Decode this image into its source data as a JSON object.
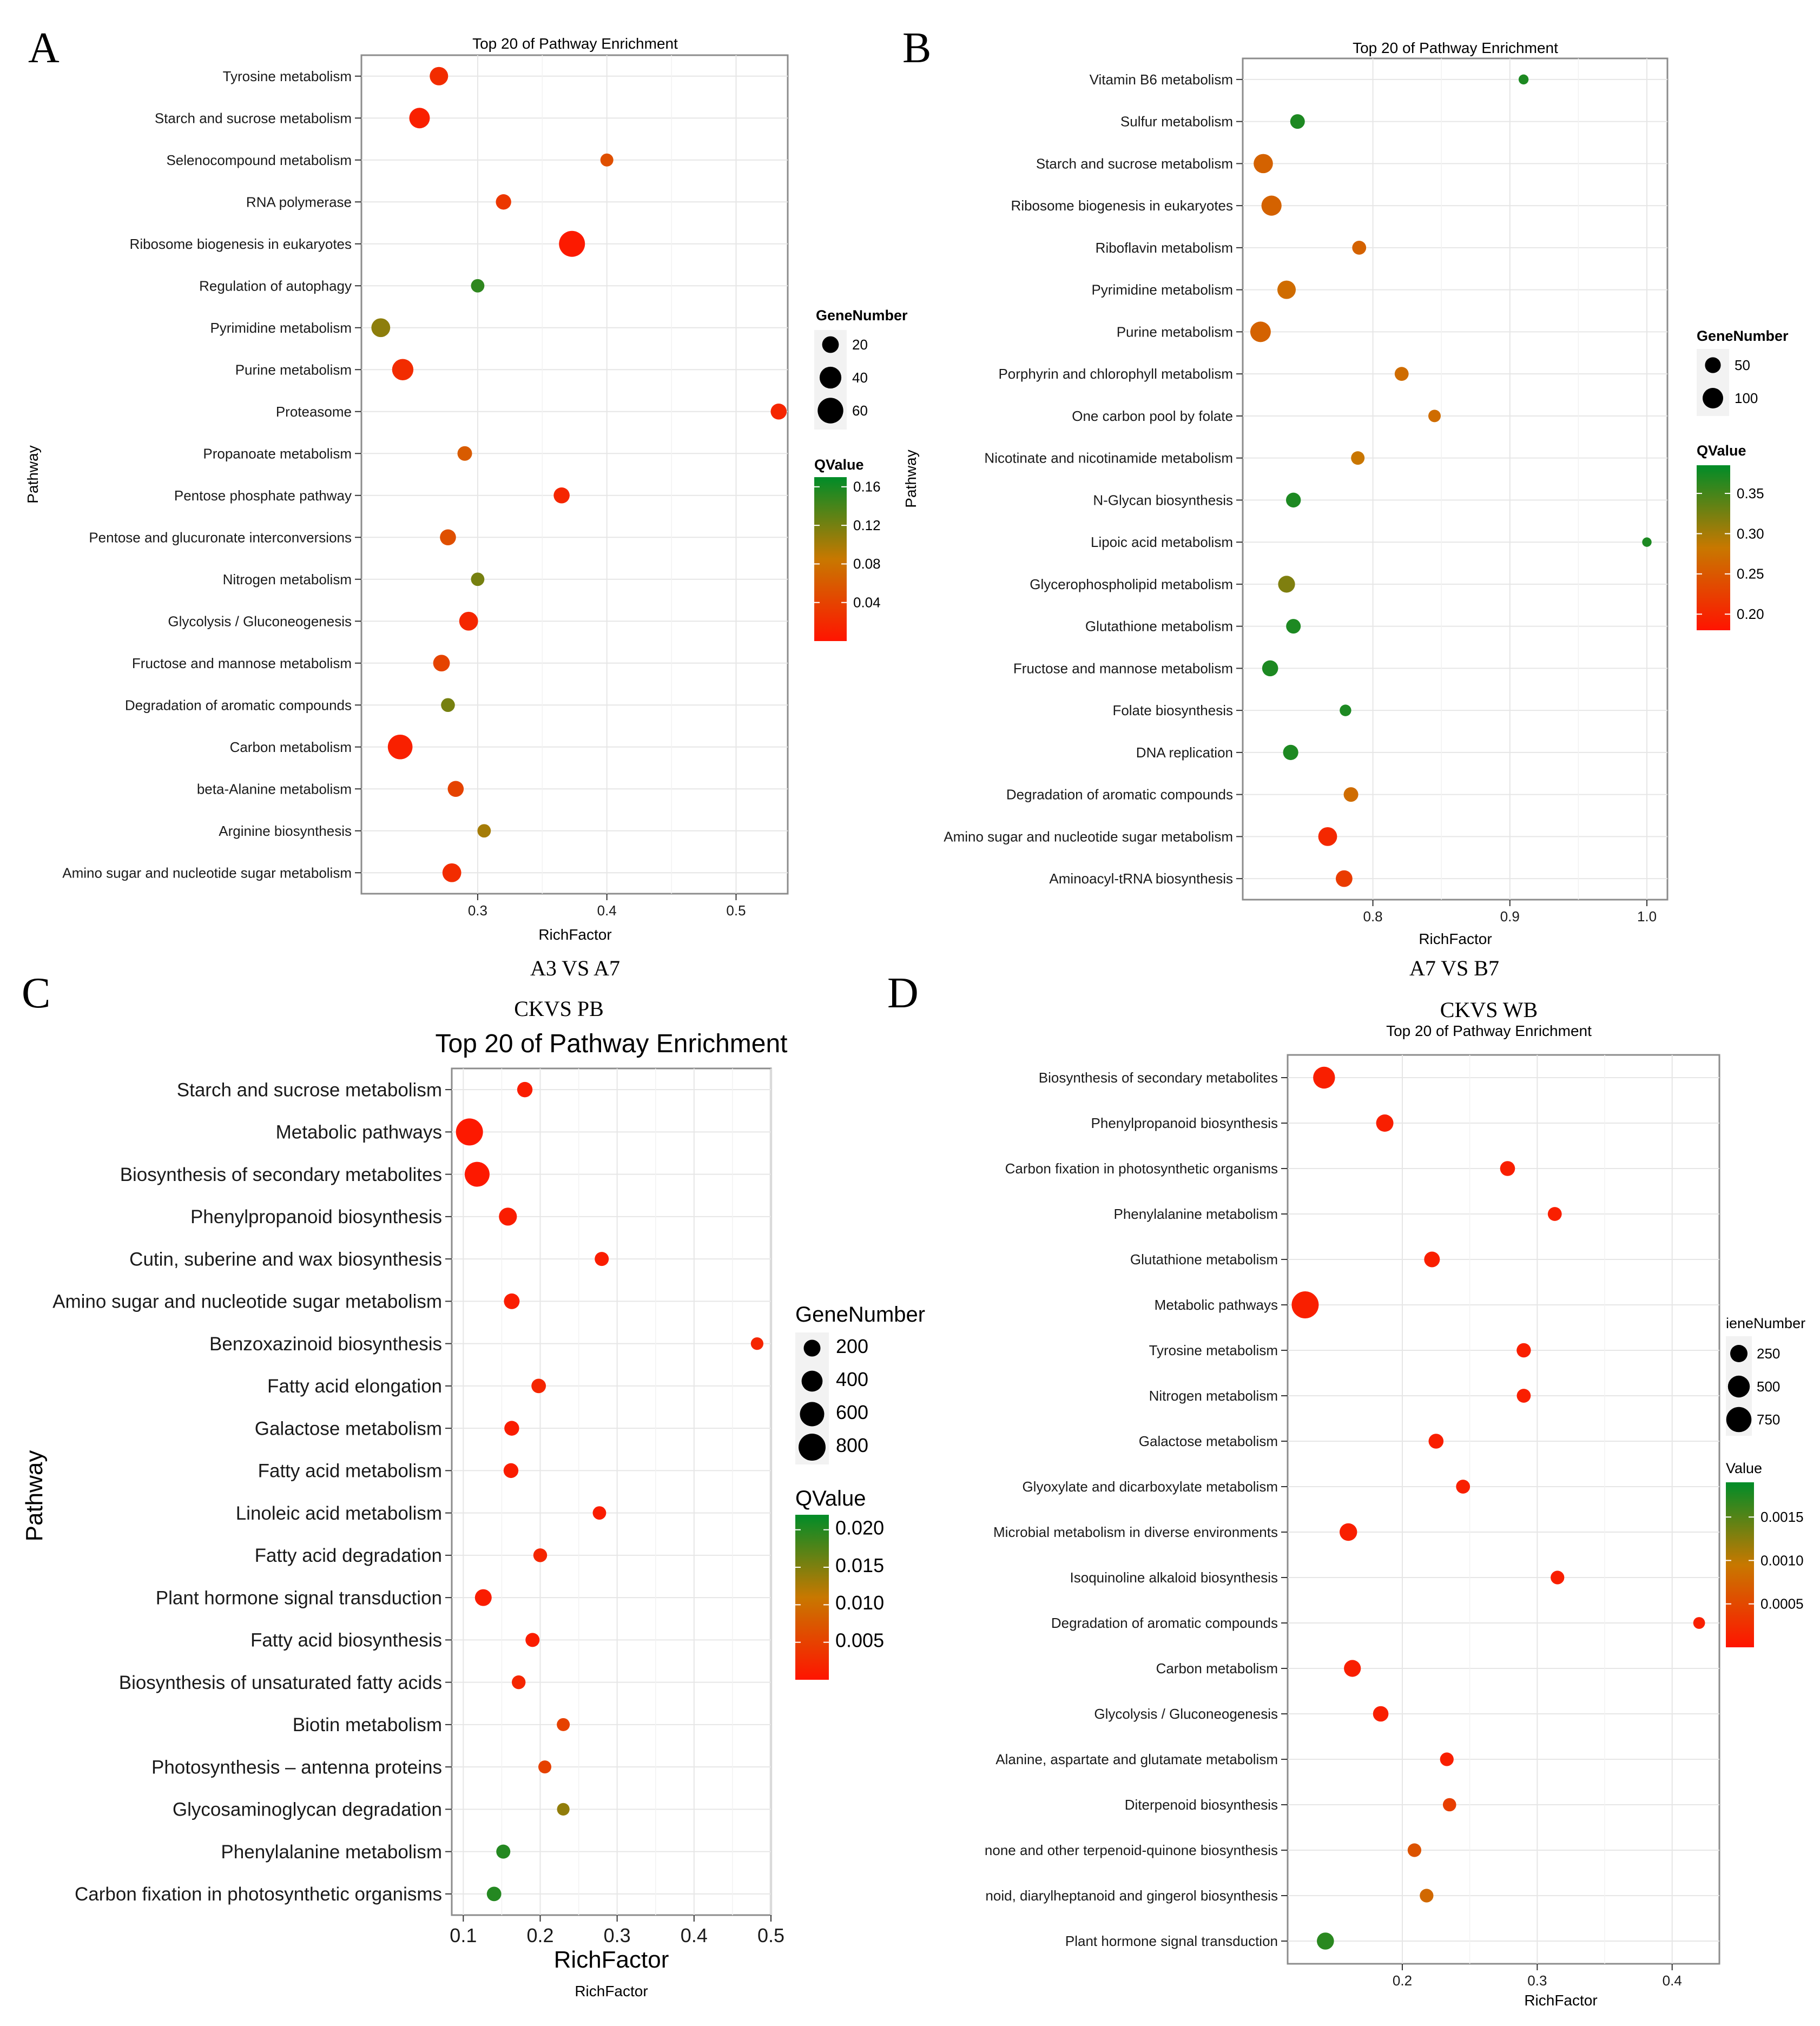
{
  "chart_data": [
    {
      "type": "scatter",
      "panel_letter": "A",
      "title": "Top 20 of Pathway Enrichment",
      "caption": "A3 VS A7",
      "xlabel": "RichFactor",
      "ylabel": "Pathway",
      "xlim": [
        0.21,
        0.54
      ],
      "xticks": [
        0.3,
        0.4,
        0.5
      ],
      "xtick_labels": [
        "0.3",
        "0.4",
        "0.5"
      ],
      "size_legend_title": "GeneNumber",
      "size_legend": [
        20,
        40,
        60
      ],
      "size_legend_labels": [
        "20",
        "40",
        "60"
      ],
      "color_legend_title": "QValue",
      "qrange": [
        0.0,
        0.17
      ],
      "color_ticks": [
        0.16,
        0.12,
        0.08,
        0.04
      ],
      "color_tick_labels": [
        "0.16",
        "0.12",
        "0.08",
        "0.04"
      ],
      "categories": [
        "Tyrosine metabolism",
        "Starch and sucrose metabolism",
        "Selenocompound metabolism",
        "RNA polymerase",
        "Ribosome biogenesis in eukaryotes",
        "Regulation of autophagy",
        "Pyrimidine metabolism",
        "Purine metabolism",
        "Proteasome",
        "Propanoate metabolism",
        "Pentose phosphate pathway",
        "Pentose and glucuronate interconversions",
        "Nitrogen metabolism",
        "Glycolysis / Gluconeogenesis",
        "Fructose and mannose metabolism",
        "Degradation of aromatic compounds",
        "Carbon metabolism",
        "beta-Alanine metabolism",
        "Arginine biosynthesis",
        "Amino sugar and nucleotide sugar metabolism"
      ],
      "x": [
        0.27,
        0.255,
        0.4,
        0.32,
        0.373,
        0.3,
        0.225,
        0.242,
        0.533,
        0.29,
        0.365,
        0.277,
        0.3,
        0.293,
        0.272,
        0.277,
        0.24,
        0.283,
        0.305,
        0.28
      ],
      "gene_number": [
        26,
        35,
        10,
        16,
        62,
        11,
        28,
        38,
        18,
        14,
        18,
        18,
        11,
        28,
        20,
        12,
        55,
        18,
        11,
        28
      ],
      "qvalue": [
        0.02,
        0.01,
        0.05,
        0.03,
        0.005,
        0.15,
        0.11,
        0.02,
        0.015,
        0.06,
        0.015,
        0.05,
        0.12,
        0.015,
        0.04,
        0.12,
        0.01,
        0.04,
        0.1,
        0.02
      ]
    },
    {
      "type": "scatter",
      "panel_letter": "B",
      "title": "Top 20 of Pathway Enrichment",
      "caption": "A7 VS B7",
      "xlabel": "RichFactor",
      "ylabel": "Pathway",
      "xlim": [
        0.705,
        1.015
      ],
      "xticks": [
        0.8,
        0.9,
        1.0
      ],
      "xtick_labels": [
        "0.8",
        "0.9",
        "1.0"
      ],
      "size_legend_title": "GeneNumber",
      "size_legend": [
        50,
        100
      ],
      "size_legend_labels": [
        "50",
        "100"
      ],
      "color_legend_title": "QValue",
      "qrange": [
        0.18,
        0.385
      ],
      "color_ticks": [
        0.35,
        0.3,
        0.25,
        0.2
      ],
      "color_tick_labels": [
        "0.35",
        "0.30",
        "0.25",
        "0.20"
      ],
      "categories": [
        "Vitamin B6 metabolism",
        "Sulfur metabolism",
        "Starch and sucrose metabolism",
        "Ribosome biogenesis in eukaryotes",
        "Riboflavin metabolism",
        "Pyrimidine metabolism",
        "Purine metabolism",
        "Porphyrin and chlorophyll metabolism",
        "One carbon pool by folate",
        "Nicotinate and nicotinamide metabolism",
        "N-Glycan biosynthesis",
        "Lipoic acid metabolism",
        "Glycerophospholipid metabolism",
        "Glutathione metabolism",
        "Fructose and mannose metabolism",
        "Folate biosynthesis",
        "DNA replication",
        "Degradation of aromatic compounds",
        "Amino sugar and nucleotide sugar metabolism",
        "Aminoacyl-tRNA biosynthesis"
      ],
      "x": [
        0.91,
        0.745,
        0.72,
        0.726,
        0.79,
        0.737,
        0.718,
        0.821,
        0.845,
        0.789,
        0.742,
        1.0,
        0.737,
        0.742,
        0.725,
        0.78,
        0.74,
        0.784,
        0.767,
        0.779
      ],
      "gene_number": [
        12,
        40,
        85,
        95,
        35,
        75,
        100,
        35,
        25,
        32,
        42,
        10,
        60,
        40,
        52,
        20,
        45,
        40,
        80,
        58
      ],
      "qvalue": [
        0.37,
        0.37,
        0.26,
        0.26,
        0.26,
        0.27,
        0.26,
        0.27,
        0.27,
        0.28,
        0.37,
        0.37,
        0.32,
        0.37,
        0.37,
        0.37,
        0.37,
        0.27,
        0.2,
        0.22
      ]
    },
    {
      "type": "scatter",
      "panel_letter": "C",
      "title": "Top 20 of Pathway Enrichment",
      "caption": "CKVS PB",
      "xlabel": "RichFactor",
      "xlabel2": "RichFactor",
      "ylabel": "Pathway",
      "xlim": [
        0.085,
        0.5
      ],
      "xticks": [
        0.1,
        0.2,
        0.3,
        0.4,
        0.5
      ],
      "xtick_labels": [
        "0.1",
        "0.2",
        "0.3",
        "0.4",
        "0.5"
      ],
      "size_legend_title": "GeneNumber",
      "size_legend": [
        200,
        400,
        600,
        800
      ],
      "size_legend_labels": [
        "200",
        "400",
        "600",
        "800"
      ],
      "color_legend_title": "QValue",
      "qrange": [
        0.0,
        0.022
      ],
      "color_ticks": [
        0.02,
        0.015,
        0.01,
        0.005
      ],
      "color_tick_labels": [
        "0.020",
        "0.015",
        "0.010",
        "0.005"
      ],
      "categories": [
        "Starch and sucrose metabolism",
        "Metabolic pathways",
        "Biosynthesis of secondary metabolites",
        "Phenylpropanoid biosynthesis",
        "Cutin, suberine and wax biosynthesis",
        "Amino sugar and nucleotide sugar metabolism",
        "Benzoxazinoid biosynthesis",
        "Fatty acid elongation",
        "Galactose metabolism",
        "Fatty acid metabolism",
        "Linoleic acid metabolism",
        "Fatty acid degradation",
        "Plant hormone signal transduction",
        "Fatty acid biosynthesis",
        "Biosynthesis of unsaturated fatty acids",
        "Biotin metabolism",
        "Photosynthesis – antenna proteins",
        "Glycosaminoglycan degradation",
        "Phenylalanine metabolism",
        "Carbon fixation in photosynthetic organisms"
      ],
      "x": [
        0.18,
        0.108,
        0.118,
        0.158,
        0.28,
        0.163,
        0.482,
        0.198,
        0.163,
        0.162,
        0.277,
        0.2,
        0.126,
        0.19,
        0.172,
        0.23,
        0.206,
        0.23,
        0.152,
        0.14
      ],
      "gene_number": [
        150,
        800,
        640,
        250,
        110,
        160,
        70,
        120,
        130,
        130,
        90,
        100,
        200,
        110,
        100,
        80,
        80,
        70,
        110,
        120
      ],
      "qvalue": [
        0.001,
        0.0005,
        0.0005,
        0.001,
        0.001,
        0.001,
        0.002,
        0.002,
        0.001,
        0.001,
        0.001,
        0.002,
        0.001,
        0.001,
        0.002,
        0.005,
        0.005,
        0.014,
        0.02,
        0.02
      ]
    },
    {
      "type": "scatter",
      "panel_letter": "D",
      "title": "Top 20 of Pathway Enrichment",
      "caption": "CKVS WB",
      "xlabel": "RichFactor",
      "ylabel": "",
      "xlim": [
        0.115,
        0.435
      ],
      "xticks": [
        0.2,
        0.3,
        0.4
      ],
      "xtick_labels": [
        "0.2",
        "0.3",
        "0.4"
      ],
      "size_legend_title": "GeneNumber",
      "size_legend_title_visible": "ieneNumber",
      "size_legend": [
        250,
        500,
        750
      ],
      "size_legend_labels": [
        "250",
        "500",
        "750"
      ],
      "color_legend_title": "QValue",
      "color_legend_title_visible": "Value",
      "qrange": [
        0.0,
        0.0019
      ],
      "color_ticks": [
        0.0015,
        0.001,
        0.0005
      ],
      "color_tick_labels": [
        "0.0015",
        "0.0010",
        "0.0005"
      ],
      "categories": [
        "Biosynthesis of secondary metabolites",
        "Phenylpropanoid biosynthesis",
        "Carbon fixation in photosynthetic organisms",
        "Phenylalanine metabolism",
        "Glutathione metabolism",
        "Metabolic pathways",
        "Tyrosine metabolism",
        "Nitrogen metabolism",
        "Galactose metabolism",
        "Glyoxylate and dicarboxylate metabolism",
        "Microbial metabolism in diverse environments",
        "Isoquinoline alkaloid biosynthesis",
        "Degradation of aromatic compounds",
        "Carbon metabolism",
        "Glycolysis / Gluconeogenesis",
        "Alanine, aspartate and glutamate metabolism",
        "Diterpenoid biosynthesis",
        "none and other terpenoid-quinone biosynthesis",
        "noid, diarylheptanoid and gingerol biosynthesis",
        "Plant hormone signal transduction"
      ],
      "x": [
        0.142,
        0.187,
        0.278,
        0.313,
        0.222,
        0.128,
        0.29,
        0.29,
        0.225,
        0.245,
        0.16,
        0.315,
        0.42,
        0.163,
        0.184,
        0.233,
        0.235,
        0.209,
        0.218,
        0.143
      ],
      "gene_number": [
        500,
        250,
        150,
        120,
        180,
        900,
        130,
        120,
        150,
        120,
        260,
        110,
        60,
        230,
        170,
        110,
        100,
        110,
        110,
        240
      ],
      "qvalue": [
        0.0001,
        0.0001,
        0.0001,
        0.0001,
        0.0001,
        0.0001,
        0.0001,
        0.0001,
        0.0001,
        0.0001,
        0.0001,
        0.0001,
        0.0001,
        0.0001,
        0.0001,
        0.0001,
        0.0004,
        0.0006,
        0.0008,
        0.0017
      ]
    }
  ]
}
